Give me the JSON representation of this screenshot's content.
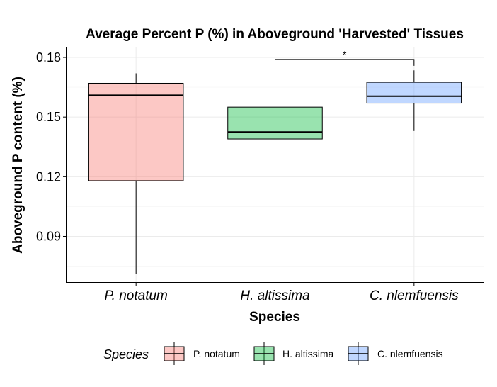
{
  "chart_data": {
    "type": "box",
    "title": "Average Percent P (%) in Aboveground 'Harvested' Tissues",
    "xlabel": "Species",
    "ylabel": "Aboveground P content (%)",
    "ylim": [
      0.067,
      0.185
    ],
    "yticks": [
      0.09,
      0.12,
      0.15,
      0.18
    ],
    "ytick_labels": [
      "0.09",
      "0.12",
      "0.15",
      "0.18"
    ],
    "grid": true,
    "categories": [
      "P. notatum",
      "H. altissima",
      "C. nlemfuensis"
    ],
    "boxes": [
      {
        "name": "P. notatum",
        "min": 0.071,
        "q1": 0.118,
        "median": 0.161,
        "q3": 0.167,
        "max": 0.172,
        "color": "#F8766D"
      },
      {
        "name": "H. altissima",
        "min": 0.122,
        "q1": 0.139,
        "median": 0.1425,
        "q3": 0.155,
        "max": 0.16,
        "color": "#00BA38"
      },
      {
        "name": "C. nlemfuensis",
        "min": 0.143,
        "q1": 0.157,
        "median": 0.1605,
        "q3": 0.1675,
        "max": 0.1735,
        "color": "#619CFF"
      }
    ],
    "significance": {
      "from": "H. altissima",
      "to": "C. nlemfuensis",
      "label": "*",
      "y": 0.179
    },
    "legend": {
      "title": "Species",
      "position": "bottom",
      "items": [
        "P. notatum",
        "H. altissima",
        "C. nlemfuensis"
      ]
    }
  }
}
